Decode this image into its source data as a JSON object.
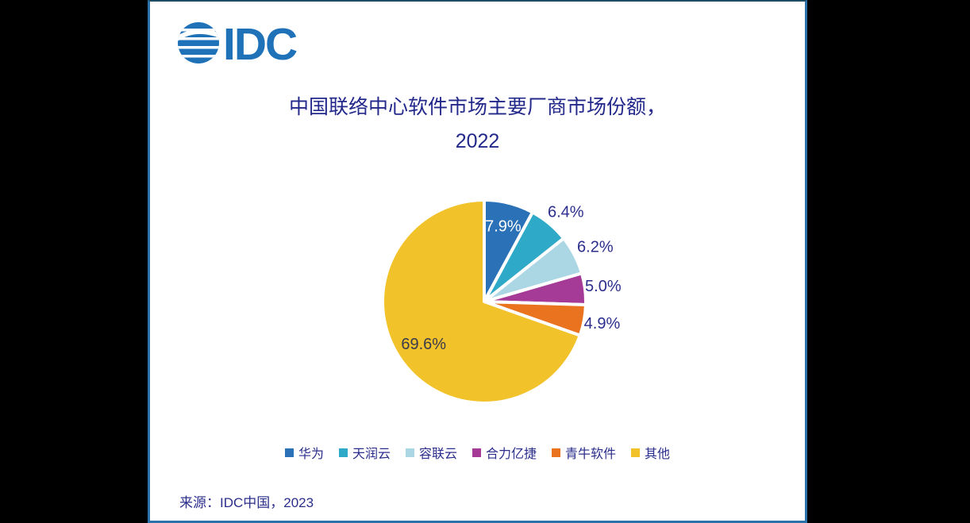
{
  "logo": {
    "text": "IDC",
    "icon": "idc-globe-icon",
    "color": "#1f72b8"
  },
  "title": {
    "line1": "中国联络中心软件市场主要厂商市场份额，",
    "line2": "2022",
    "color": "#23288b"
  },
  "footer": {
    "source": "来源：IDC中国，2023"
  },
  "colors": {
    "card_border": "#2b72ab",
    "background": "#000000",
    "label_navy": "#2b2e8c"
  },
  "chart_data": {
    "type": "pie",
    "title": "中国联络中心软件市场主要厂商市场份额，2022",
    "start_angle_deg": 0,
    "direction": "clockwise",
    "legend_position": "bottom",
    "total": 100.0,
    "series": [
      {
        "name": "华为",
        "value": 7.9,
        "color": "#2b71b8",
        "label": "7.9%",
        "label_r": 0.76,
        "label_color": "#ffffff",
        "label_dy": 0
      },
      {
        "name": "天润云",
        "value": 6.4,
        "color": "#2fa9c8",
        "label": "6.4%",
        "label_r": 1.25,
        "label_color": "#2b2e8c",
        "label_dy": 10
      },
      {
        "name": "容联云",
        "value": 6.2,
        "color": "#abd6e3",
        "label": "6.2%",
        "label_r": 1.23,
        "label_color": "#2b2e8c",
        "label_dy": 4
      },
      {
        "name": "合力亿捷",
        "value": 5.0,
        "color": "#a63b97",
        "label": "5.0%",
        "label_r": 1.18,
        "label_color": "#2b2e8c",
        "label_dy": 0
      },
      {
        "name": "青牛软件",
        "value": 4.9,
        "color": "#e9731f",
        "label": "4.9%",
        "label_r": 1.18,
        "label_color": "#2b2e8c",
        "label_dy": 0
      },
      {
        "name": "其他",
        "value": 69.6,
        "color": "#f2c22b",
        "label": "69.6%",
        "label_r": 0.73,
        "label_color": "#3a3a4d",
        "label_dy": 0
      }
    ]
  }
}
